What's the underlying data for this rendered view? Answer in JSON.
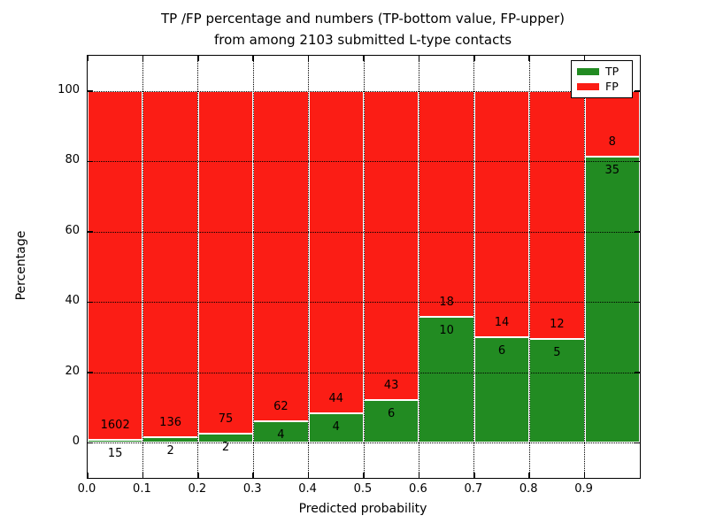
{
  "chart_data": {
    "type": "bar",
    "stacked_percentage": true,
    "title": "TP /FP percentage and numbers (TP-bottom value, FP-upper) from among 2103 submitted L-type contacts",
    "title_line1": "TP /FP percentage and numbers (TP-bottom value, FP-upper)",
    "title_line2": "from among 2103 submitted L-type contacts",
    "xlabel": "Predicted probability",
    "ylabel": "Percentage",
    "x_tick_labels": [
      "0.0",
      "0.1",
      "0.2",
      "0.3",
      "0.4",
      "0.5",
      "0.6",
      "0.7",
      "0.8",
      "0.9"
    ],
    "y_ticks": [
      0,
      20,
      40,
      60,
      80,
      100
    ],
    "xlim": [
      0.0,
      1.0
    ],
    "ylim": [
      -10,
      110
    ],
    "bin_width": 0.1,
    "total_contacts": 2103,
    "grid": "dotted",
    "legend_position": "upper right",
    "series": [
      {
        "name": "TP",
        "color": "#228b22",
        "counts": [
          15,
          2,
          2,
          4,
          4,
          6,
          10,
          6,
          5,
          35
        ]
      },
      {
        "name": "FP",
        "color": "#fb1d15",
        "counts": [
          1602,
          136,
          75,
          62,
          44,
          43,
          18,
          14,
          12,
          8
        ]
      }
    ],
    "tp_percent_per_bin": [
      0.93,
      1.45,
      2.6,
      6.06,
      8.33,
      12.24,
      35.71,
      30.0,
      29.41,
      81.4
    ]
  },
  "legend": {
    "tp_label": "TP",
    "fp_label": "FP"
  }
}
